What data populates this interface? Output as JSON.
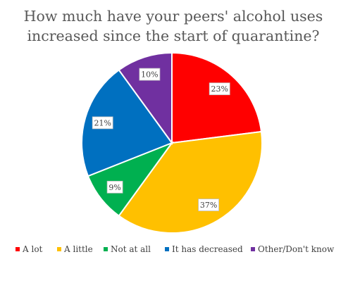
{
  "chart_data": {
    "type": "pie",
    "title_lines": [
      "How much have your peers' alcohol uses",
      "increased since the start of quarantine?"
    ],
    "categories": [
      "A lot",
      "A little",
      "Not at all",
      "It has decreased",
      "Other/Don't know"
    ],
    "values": [
      23,
      37,
      9,
      21,
      10
    ],
    "labels": [
      "23%",
      "37%",
      "9%",
      "21%",
      "10%"
    ],
    "colors": [
      "#ff0000",
      "#ffc000",
      "#00b050",
      "#0070c0",
      "#7030a0"
    ],
    "start_angle": "12 o'clock",
    "direction": "clockwise",
    "legend_position": "bottom"
  }
}
